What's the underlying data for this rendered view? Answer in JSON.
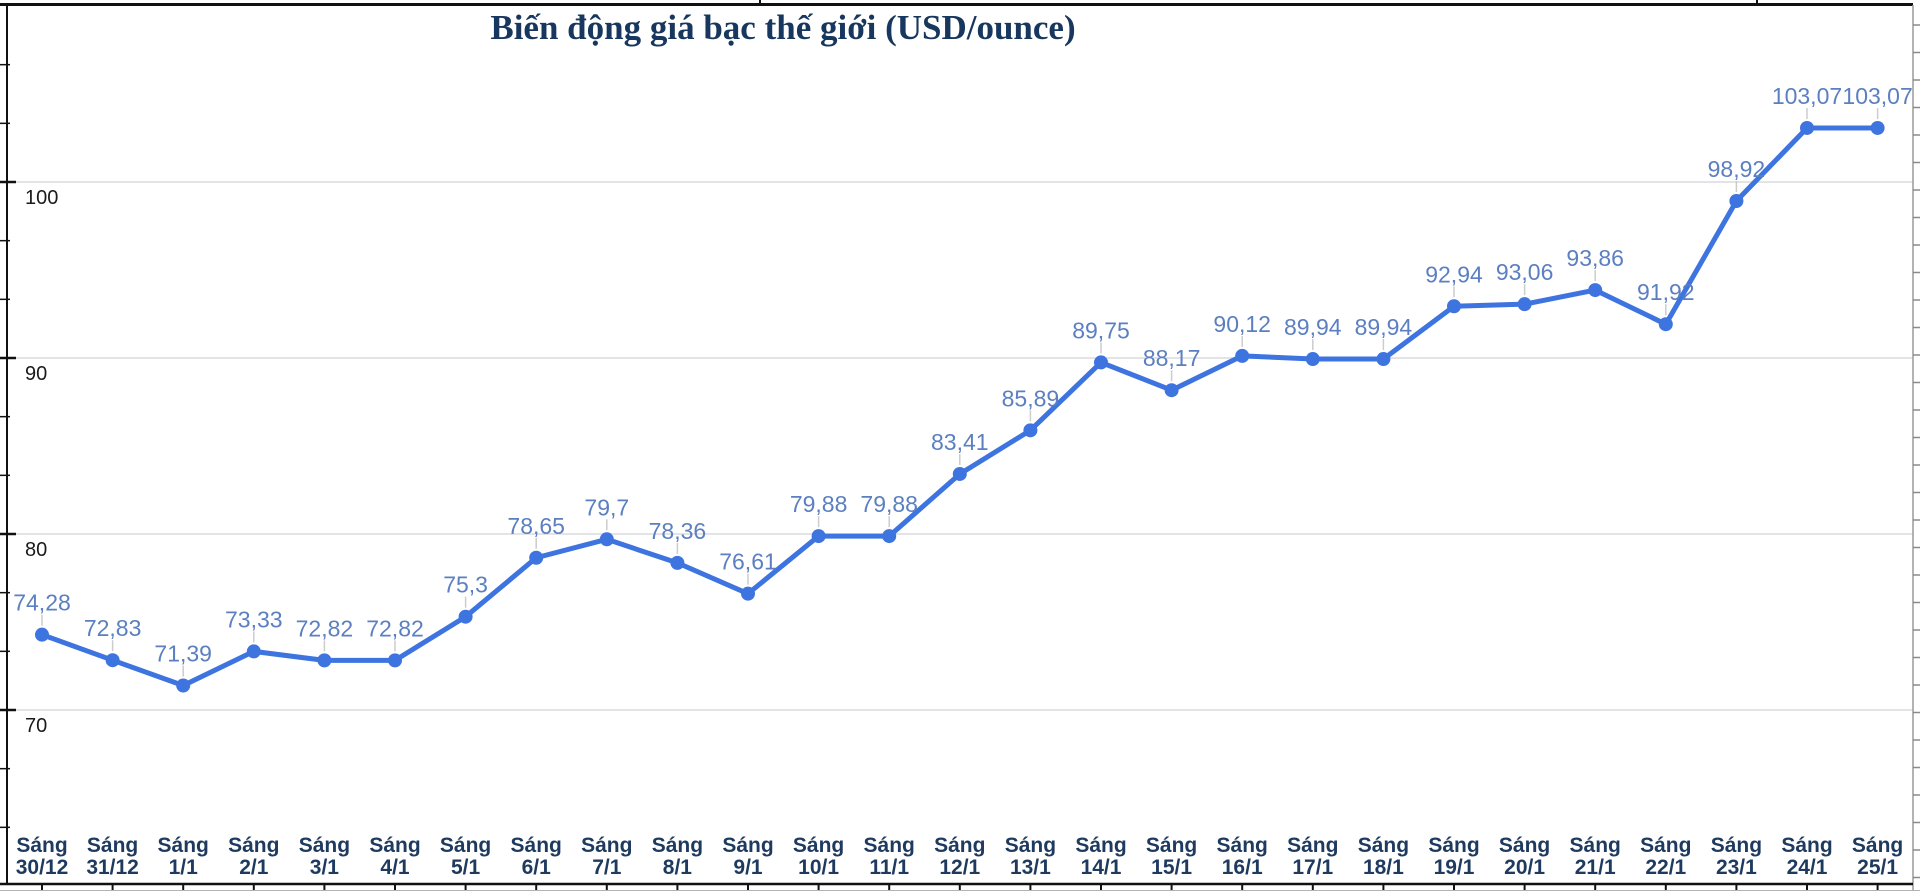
{
  "chart_data": {
    "type": "line",
    "title": "Biến động giá bạc thế giới (USD/ounce)",
    "x_label_prefix": "Sáng",
    "categories": [
      "30/12",
      "31/12",
      "1/1",
      "2/1",
      "3/1",
      "4/1",
      "5/1",
      "6/1",
      "7/1",
      "8/1",
      "9/1",
      "10/1",
      "11/1",
      "12/1",
      "13/1",
      "14/1",
      "15/1",
      "16/1",
      "17/1",
      "18/1",
      "19/1",
      "20/1",
      "21/1",
      "22/1",
      "23/1",
      "24/1",
      "25/1"
    ],
    "values": [
      74.28,
      72.83,
      71.39,
      73.33,
      72.82,
      72.82,
      75.3,
      78.65,
      79.7,
      78.36,
      76.61,
      79.88,
      79.88,
      83.41,
      85.89,
      89.75,
      88.17,
      90.12,
      89.94,
      89.94,
      92.94,
      93.06,
      93.86,
      91.92,
      98.92,
      103.07,
      103.07
    ],
    "value_labels": [
      "74,28",
      "72,83",
      "71,39",
      "73,33",
      "72,82",
      "72,82",
      "75,3",
      "78,65",
      "79,7",
      "78,36",
      "76,61",
      "79,88",
      "79,88",
      "83,41",
      "85,89",
      "89,75",
      "88,17",
      "90,12",
      "89,94",
      "89,94",
      "92,94",
      "93,06",
      "93,86",
      "91,92",
      "98,92",
      "103,07",
      "103,07"
    ],
    "y_ticks": [
      70,
      80,
      90,
      100
    ],
    "y_tick_labels": [
      "70",
      "80",
      "90",
      "100"
    ],
    "ylim": [
      63.3,
      107.5
    ],
    "grid": "horizontal-major",
    "legend": "none",
    "colors": {
      "series": "#3d74e0",
      "data_label": "#5b7fc0",
      "grid": "#dadce0",
      "axis": "#111111",
      "x_label": "#1e3a5f",
      "y_label": "#1a1a1a",
      "title": "#17375e",
      "leader": "#cccccc",
      "sheet_line": "#b3b3b3"
    }
  }
}
